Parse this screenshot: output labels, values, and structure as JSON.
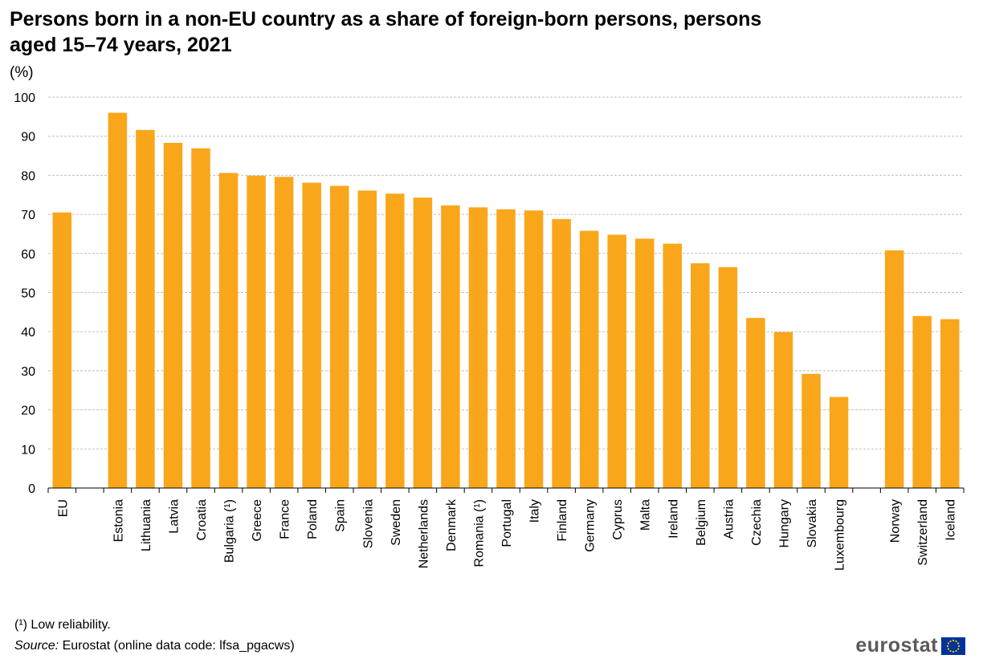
{
  "chart_data": {
    "type": "bar",
    "title": "Persons born in a non-EU country as a share of foreign-born persons, persons aged 15–74 years, 2021",
    "ylabel": "(%)",
    "xlabel": "",
    "ylim": [
      0,
      100
    ],
    "yticks": [
      0,
      10,
      20,
      30,
      40,
      50,
      60,
      70,
      80,
      90,
      100
    ],
    "grid": true,
    "categories": [
      "EU",
      "",
      "Estonia",
      "Lithuania",
      "Latvia",
      "Croatia",
      "Bulgaria (¹)",
      "Greece",
      "France",
      "Poland",
      "Spain",
      "Slovenia",
      "Sweden",
      "Netherlands",
      "Denmark",
      "Romania (¹)",
      "Portugal",
      "Italy",
      "Finland",
      "Germany",
      "Cyprus",
      "Malta",
      "Ireland",
      "Belgium",
      "Austria",
      "Czechia",
      "Hungary",
      "Slovakia",
      "Luxembourg",
      "",
      "Norway",
      "Switzerland",
      "Iceland"
    ],
    "values": [
      70.5,
      null,
      96.0,
      91.6,
      88.3,
      86.9,
      80.6,
      79.9,
      79.6,
      78.1,
      77.3,
      76.1,
      75.3,
      74.3,
      72.3,
      71.8,
      71.3,
      71.0,
      68.8,
      65.8,
      64.8,
      63.8,
      62.5,
      57.5,
      56.5,
      43.5,
      39.9,
      29.2,
      23.3,
      null,
      60.8,
      44.0,
      43.2
    ],
    "bar_color": "#f9a61a",
    "grid_color": "#bfbfbf"
  },
  "footnote": "(¹) Low reliability.",
  "source": {
    "label": "Source:",
    "text": " Eurostat (online data code: lfsa_pgacws)"
  },
  "logo": {
    "text": "eurostat",
    "flag_color": "#003399",
    "star_color": "#ffcc00"
  }
}
